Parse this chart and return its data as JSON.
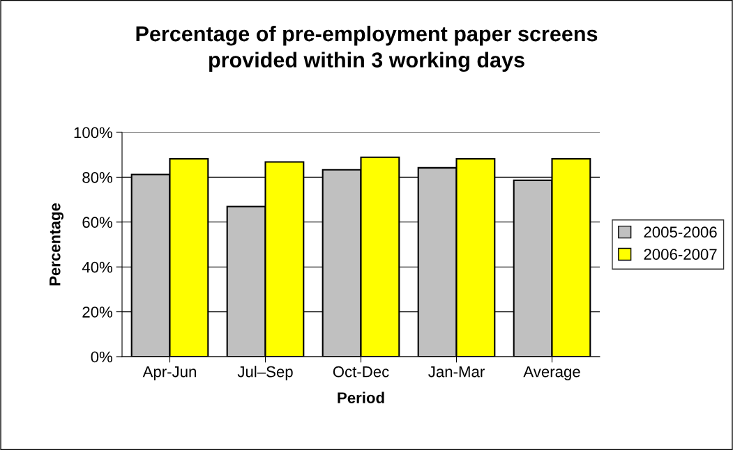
{
  "chart_data": {
    "type": "bar",
    "title": "Percentage of pre-employment paper screens\nprovided within 3 working days",
    "xlabel": "Period",
    "ylabel": "Percentage",
    "categories": [
      "Apr-Jun",
      "Jul–Sep",
      "Oct-Dec",
      "Jan-Mar",
      "Average"
    ],
    "series": [
      {
        "name": "2005-2006",
        "color": "#c0c0c0",
        "values": [
          81.2,
          66.9,
          83.3,
          84.2,
          78.6
        ]
      },
      {
        "name": "2006-2007",
        "color": "#ffff00",
        "values": [
          88.2,
          86.8,
          88.9,
          88.2,
          88.2
        ]
      }
    ],
    "ylim": [
      0,
      100
    ],
    "yticks": [
      {
        "value": 0,
        "label": "0%"
      },
      {
        "value": 20,
        "label": "20%"
      },
      {
        "value": 40,
        "label": "40%"
      },
      {
        "value": 60,
        "label": "60%"
      },
      {
        "value": 80,
        "label": "80%"
      },
      {
        "value": 100,
        "label": "100%"
      }
    ],
    "grid": "y",
    "legend": "right"
  }
}
